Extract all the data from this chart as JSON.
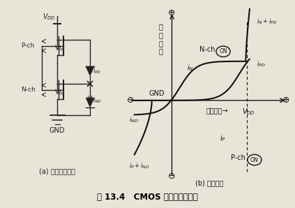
{
  "title": "图 13.4   CMOS 器件的输出特性",
  "subtitle_a": "(a) 输出等效电路",
  "subtitle_b": "(b) 输出特性",
  "fig_bg": "#e8e4d8",
  "left_bg": "#f5f3ed",
  "right_bg": "#ebe8df"
}
